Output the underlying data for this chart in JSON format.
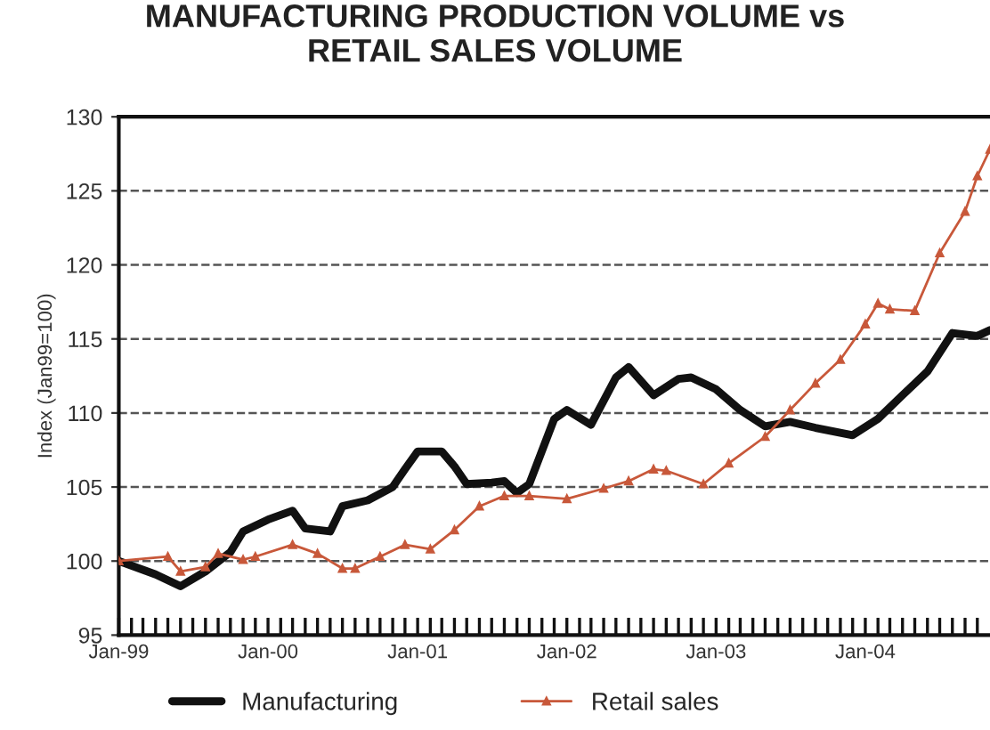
{
  "chart_data": {
    "type": "line",
    "title": "MANUFACTURING PRODUCTION VOLUME vs\nRETAIL SALES VOLUME",
    "ylabel": "Index (Jan99=100)",
    "ylim": [
      95,
      130
    ],
    "yticks": [
      95,
      100,
      105,
      110,
      115,
      120,
      125,
      130
    ],
    "xlim": [
      "1999-01",
      "2004-11"
    ],
    "xticks": [
      {
        "value": "1999-01",
        "label": "Jan-99"
      },
      {
        "value": "1999-02",
        "label": null
      },
      {
        "value": "1999-03",
        "label": null
      },
      {
        "value": "1999-04",
        "label": null
      },
      {
        "value": "1999-05",
        "label": null
      },
      {
        "value": "1999-06",
        "label": null
      },
      {
        "value": "1999-07",
        "label": null
      },
      {
        "value": "1999-08",
        "label": null
      },
      {
        "value": "1999-09",
        "label": null
      },
      {
        "value": "1999-10",
        "label": null
      },
      {
        "value": "1999-11",
        "label": null
      },
      {
        "value": "1999-12",
        "label": null
      },
      {
        "value": "2000-01",
        "label": "Jan-00"
      },
      {
        "value": "2000-02",
        "label": null
      },
      {
        "value": "2000-03",
        "label": null
      },
      {
        "value": "2000-04",
        "label": null
      },
      {
        "value": "2000-05",
        "label": null
      },
      {
        "value": "2000-06",
        "label": null
      },
      {
        "value": "2000-07",
        "label": null
      },
      {
        "value": "2000-08",
        "label": null
      },
      {
        "value": "2000-09",
        "label": null
      },
      {
        "value": "2000-10",
        "label": null
      },
      {
        "value": "2000-11",
        "label": null
      },
      {
        "value": "2000-12",
        "label": null
      },
      {
        "value": "2001-01",
        "label": "Jan-01"
      },
      {
        "value": "2001-02",
        "label": null
      },
      {
        "value": "2001-03",
        "label": null
      },
      {
        "value": "2001-04",
        "label": null
      },
      {
        "value": "2001-05",
        "label": null
      },
      {
        "value": "2001-06",
        "label": null
      },
      {
        "value": "2001-07",
        "label": null
      },
      {
        "value": "2001-08",
        "label": null
      },
      {
        "value": "2001-09",
        "label": null
      },
      {
        "value": "2001-10",
        "label": null
      },
      {
        "value": "2001-11",
        "label": null
      },
      {
        "value": "2001-12",
        "label": null
      },
      {
        "value": "2002-01",
        "label": "Jan-02"
      },
      {
        "value": "2002-02",
        "label": null
      },
      {
        "value": "2002-03",
        "label": null
      },
      {
        "value": "2002-04",
        "label": null
      },
      {
        "value": "2002-05",
        "label": null
      },
      {
        "value": "2002-06",
        "label": null
      },
      {
        "value": "2002-07",
        "label": null
      },
      {
        "value": "2002-08",
        "label": null
      },
      {
        "value": "2002-09",
        "label": null
      },
      {
        "value": "2002-10",
        "label": null
      },
      {
        "value": "2002-11",
        "label": null
      },
      {
        "value": "2002-12",
        "label": null
      },
      {
        "value": "2003-01",
        "label": "Jan-03"
      },
      {
        "value": "2003-02",
        "label": null
      },
      {
        "value": "2003-03",
        "label": null
      },
      {
        "value": "2003-04",
        "label": null
      },
      {
        "value": "2003-05",
        "label": null
      },
      {
        "value": "2003-06",
        "label": null
      },
      {
        "value": "2003-07",
        "label": null
      },
      {
        "value": "2003-08",
        "label": null
      },
      {
        "value": "2003-09",
        "label": null
      },
      {
        "value": "2003-10",
        "label": null
      },
      {
        "value": "2003-11",
        "label": null
      },
      {
        "value": "2003-12",
        "label": null
      },
      {
        "value": "2004-01",
        "label": "Jan-04"
      },
      {
        "value": "2004-02",
        "label": null
      },
      {
        "value": "2004-03",
        "label": null
      },
      {
        "value": "2004-04",
        "label": null
      },
      {
        "value": "2004-05",
        "label": null
      },
      {
        "value": "2004-06",
        "label": null
      },
      {
        "value": "2004-07",
        "label": null
      },
      {
        "value": "2004-08",
        "label": null
      },
      {
        "value": "2004-09",
        "label": null
      },
      {
        "value": "2004-10",
        "label": null
      }
    ],
    "grid": "y",
    "legend": "bottom",
    "series": [
      {
        "name": "Manufacturing",
        "color": "#111111",
        "marker": "none",
        "x": [
          "1999-01",
          "1999-04",
          "1999-06",
          "1999-08",
          "1999-10",
          "1999-11",
          "2000-01",
          "2000-03",
          "2000-04",
          "2000-06",
          "2000-07",
          "2000-09",
          "2000-11",
          "2000-12",
          "2001-01",
          "2001-03",
          "2001-04",
          "2001-05",
          "2001-07",
          "2001-08",
          "2001-09",
          "2001-10",
          "2001-12",
          "2002-01",
          "2002-03",
          "2002-05",
          "2002-06",
          "2002-08",
          "2002-10",
          "2002-11",
          "2003-01",
          "2003-03",
          "2003-05",
          "2003-07",
          "2003-09",
          "2003-12",
          "2004-02",
          "2004-04",
          "2004-06",
          "2004-08",
          "2004-10",
          "2004-11"
        ],
        "values": [
          100,
          99.1,
          98.3,
          99.3,
          100.6,
          102,
          102.8,
          103.4,
          102.2,
          102,
          103.7,
          104.1,
          105,
          106.2,
          107.4,
          107.4,
          106.4,
          105.2,
          105.3,
          105.4,
          104.6,
          105.2,
          109.6,
          110.2,
          109.2,
          112.4,
          113.1,
          111.2,
          112.3,
          112.4,
          111.6,
          110.2,
          109.1,
          109.4,
          109,
          108.5,
          109.6,
          111.2,
          112.8,
          115.4,
          115.2,
          115.6
        ]
      },
      {
        "name": "Retail sales",
        "color": "#c8583a",
        "marker": "triangle",
        "x": [
          "1999-01",
          "1999-05",
          "1999-06",
          "1999-08",
          "1999-09",
          "1999-11",
          "1999-12",
          "2000-03",
          "2000-05",
          "2000-07",
          "2000-08",
          "2000-10",
          "2000-12",
          "2001-02",
          "2001-04",
          "2001-06",
          "2001-08",
          "2001-10",
          "2002-01",
          "2002-04",
          "2002-06",
          "2002-08",
          "2002-09",
          "2002-12",
          "2003-02",
          "2003-05",
          "2003-07",
          "2003-09",
          "2003-11",
          "2004-01",
          "2004-02",
          "2004-03",
          "2004-05",
          "2004-07",
          "2004-09",
          "2004-10",
          "2004-11"
        ],
        "values": [
          100,
          100.3,
          99.3,
          99.6,
          100.5,
          100.1,
          100.3,
          101.1,
          100.5,
          99.5,
          99.5,
          100.3,
          101.1,
          100.8,
          102.1,
          103.7,
          104.4,
          104.4,
          104.2,
          104.9,
          105.4,
          106.2,
          106.1,
          105.2,
          106.6,
          108.4,
          110.2,
          112,
          113.6,
          116,
          117.4,
          117,
          116.9,
          120.8,
          123.6,
          126,
          127.8
        ]
      }
    ]
  }
}
